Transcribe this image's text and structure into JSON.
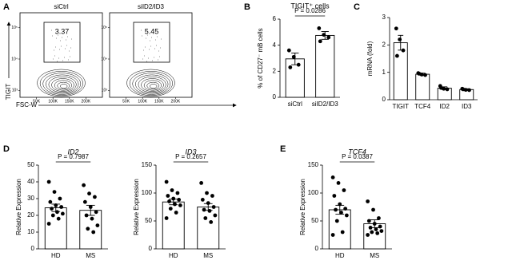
{
  "panel_labels": [
    "A",
    "B",
    "C",
    "D",
    "E"
  ],
  "chart_data": [
    {
      "type": "flow",
      "title": "siCtrl",
      "gate_value": 3.37,
      "x_label": "FSC-W",
      "y_label": "TIGIT",
      "xlim": [
        0,
        250000
      ],
      "xticks": [
        {
          "value": 50000,
          "label": "50K"
        },
        {
          "value": 100000,
          "label": "100K"
        },
        {
          "value": 150000,
          "label": "150K"
        },
        {
          "value": 200000,
          "label": "200K"
        }
      ],
      "ylog": true,
      "ylim": [
        600,
        300000
      ],
      "yticks": [
        {
          "value": 1000,
          "label": "10³"
        },
        {
          "value": 10000,
          "label": "10⁴"
        },
        {
          "value": 100000,
          "label": "10⁵"
        }
      ]
    },
    {
      "type": "flow",
      "title": "siID2/ID3",
      "gate_value": 5.45,
      "xlim": [
        0,
        250000
      ],
      "xticks": [
        {
          "value": 50000,
          "label": "50K"
        },
        {
          "value": 100000,
          "label": "100K"
        },
        {
          "value": 150000,
          "label": "150K"
        },
        {
          "value": 200000,
          "label": "200K"
        }
      ],
      "ylog": true,
      "ylim": [
        600,
        300000
      ],
      "yticks": [
        {
          "value": 1000,
          "label": "10³"
        },
        {
          "value": 10000,
          "label": "10⁴"
        },
        {
          "value": 100000,
          "label": "10⁵"
        }
      ]
    },
    {
      "type": "dotbar",
      "title": "TIGIT⁺ cells",
      "y_label": "% of CD27⁻ mB cells",
      "categories": [
        "siCtrl",
        "siID2/ID3"
      ],
      "values": [
        2.95,
        4.75
      ],
      "errors": [
        0.45,
        0.3
      ],
      "points": [
        [
          3.6,
          3.1,
          2.5,
          2.3
        ],
        [
          5.3,
          4.8,
          4.6,
          4.3
        ]
      ],
      "ylim": [
        0,
        6
      ],
      "yticks": [
        0,
        2,
        4,
        6
      ],
      "annotation": "P = 0.0286"
    },
    {
      "type": "dotbar",
      "y_label": "mRNA (fold)",
      "categories": [
        "TIGIT",
        "TCF4",
        "ID2",
        "ID3"
      ],
      "values": [
        2.08,
        0.93,
        0.42,
        0.37
      ],
      "errors": [
        0.27,
        0.04,
        0.05,
        0.03
      ],
      "points": [
        [
          2.6,
          2.2,
          1.8,
          1.6
        ],
        [
          0.97,
          0.92,
          0.9,
          0.95
        ],
        [
          0.5,
          0.4,
          0.38,
          0.43
        ],
        [
          0.4,
          0.36,
          0.35,
          0.38
        ]
      ],
      "ylim": [
        0,
        3
      ],
      "yticks": [
        0,
        1,
        2,
        3
      ]
    },
    {
      "type": "dotbar",
      "title": "ID2",
      "y_label": "Relative Expression",
      "categories": [
        "HD",
        "MS"
      ],
      "values": [
        24.5,
        23
      ],
      "errors": [
        2.2,
        3
      ],
      "points": [
        [
          40,
          34,
          30,
          28,
          26,
          25,
          24,
          22,
          21,
          20,
          18,
          15
        ],
        [
          38,
          33,
          31,
          28,
          25,
          22,
          20,
          18,
          14,
          12,
          10
        ]
      ],
      "ylim": [
        0,
        50
      ],
      "yticks": [
        0,
        10,
        20,
        30,
        40,
        50
      ],
      "annotation": "P = 0.7987"
    },
    {
      "type": "dotbar",
      "title": "ID3",
      "y_label": "Relative Expression",
      "categories": [
        "HD",
        "MS"
      ],
      "values": [
        84,
        75
      ],
      "errors": [
        5,
        6
      ],
      "points": [
        [
          120,
          105,
          100,
          95,
          90,
          88,
          85,
          80,
          78,
          72,
          65,
          55
        ],
        [
          118,
          100,
          95,
          88,
          82,
          75,
          70,
          68,
          60,
          55,
          48
        ]
      ],
      "ylim": [
        0,
        150
      ],
      "yticks": [
        0,
        50,
        100,
        150
      ],
      "annotation": "P = 0.2657"
    },
    {
      "type": "dotbar",
      "title": "TCF4",
      "y_label": "Relative Expression",
      "categories": [
        "HD",
        "MS"
      ],
      "values": [
        70,
        45
      ],
      "errors": [
        8,
        7
      ],
      "points": [
        [
          128,
          118,
          105,
          95,
          80,
          72,
          70,
          65,
          60,
          50,
          30,
          25
        ],
        [
          85,
          70,
          55,
          50,
          45,
          40,
          38,
          35,
          32,
          30,
          28,
          25
        ]
      ],
      "ylim": [
        0,
        150
      ],
      "yticks": [
        0,
        50,
        100,
        150
      ],
      "annotation": "P = 0.0387"
    }
  ]
}
